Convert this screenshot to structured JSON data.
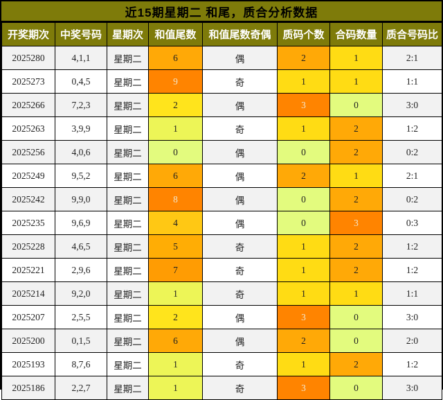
{
  "chart_data": {
    "type": "table",
    "title": "近15期星期二 和尾，质合分析数据",
    "columns": [
      "开奖期次",
      "中奖号码",
      "星期次",
      "和值尾数",
      "和值尾数奇偶",
      "质码个数",
      "合码数量",
      "质合号码比"
    ],
    "rows": [
      [
        "2025280",
        "4,1,1",
        "星期二",
        "6",
        "偶",
        "2",
        "1",
        "2:1"
      ],
      [
        "2025273",
        "0,4,5",
        "星期二",
        "9",
        "奇",
        "1",
        "1",
        "1:1"
      ],
      [
        "2025266",
        "7,2,3",
        "星期二",
        "2",
        "偶",
        "3",
        "0",
        "3:0"
      ],
      [
        "2025263",
        "3,9,9",
        "星期二",
        "1",
        "奇",
        "1",
        "2",
        "1:2"
      ],
      [
        "2025256",
        "4,0,6",
        "星期二",
        "0",
        "偶",
        "0",
        "2",
        "0:2"
      ],
      [
        "2025249",
        "9,5,2",
        "星期二",
        "6",
        "偶",
        "2",
        "1",
        "2:1"
      ],
      [
        "2025242",
        "9,9,0",
        "星期二",
        "8",
        "偶",
        "0",
        "2",
        "0:2"
      ],
      [
        "2025235",
        "9,6,9",
        "星期二",
        "4",
        "偶",
        "0",
        "3",
        "0:3"
      ],
      [
        "2025228",
        "4,6,5",
        "星期二",
        "5",
        "奇",
        "1",
        "2",
        "1:2"
      ],
      [
        "2025221",
        "2,9,6",
        "星期二",
        "7",
        "奇",
        "1",
        "2",
        "1:2"
      ],
      [
        "2025214",
        "9,2,0",
        "星期二",
        "1",
        "奇",
        "1",
        "1",
        "1:1"
      ],
      [
        "2025207",
        "2,5,5",
        "星期二",
        "2",
        "偶",
        "3",
        "0",
        "3:0"
      ],
      [
        "2025200",
        "0,1,5",
        "星期二",
        "6",
        "偶",
        "2",
        "0",
        "2:0"
      ],
      [
        "2025193",
        "8,7,6",
        "星期二",
        "1",
        "奇",
        "1",
        "2",
        "1:2"
      ],
      [
        "2025186",
        "2,2,7",
        "星期二",
        "1",
        "奇",
        "3",
        "0",
        "3:0"
      ]
    ]
  },
  "table": {
    "column_keys": [
      "period",
      "numbers",
      "weekday",
      "tail",
      "parity",
      "prime-count",
      "composite-count",
      "ratio"
    ],
    "heat_columns": {
      "3": "tail",
      "5": "count",
      "6": "count"
    }
  },
  "style": {
    "olive_header_bg": "#7E7B0A",
    "stripe_odd_bg": "#F2F2F2",
    "stripe_even_bg": "#FFFFFF",
    "grid_color": "#000000",
    "light_text": "#F2E6CC",
    "light_text_values": {
      "tail": [
        "8",
        "9"
      ],
      "count": [
        "3"
      ]
    },
    "scales": {
      "tail": {
        "0": "#E3FB7E",
        "1": "#EDF557",
        "2": "#FFE41C",
        "4": "#FFC814",
        "5": "#FFAD05",
        "6": "#FFA907",
        "7": "#FF9C03",
        "8": "#FF8400",
        "9": "#FF8400"
      },
      "count": {
        "0": "#E3FB7E",
        "1": "#FFDC14",
        "2": "#FFA907",
        "3": "#FF8400"
      }
    }
  }
}
